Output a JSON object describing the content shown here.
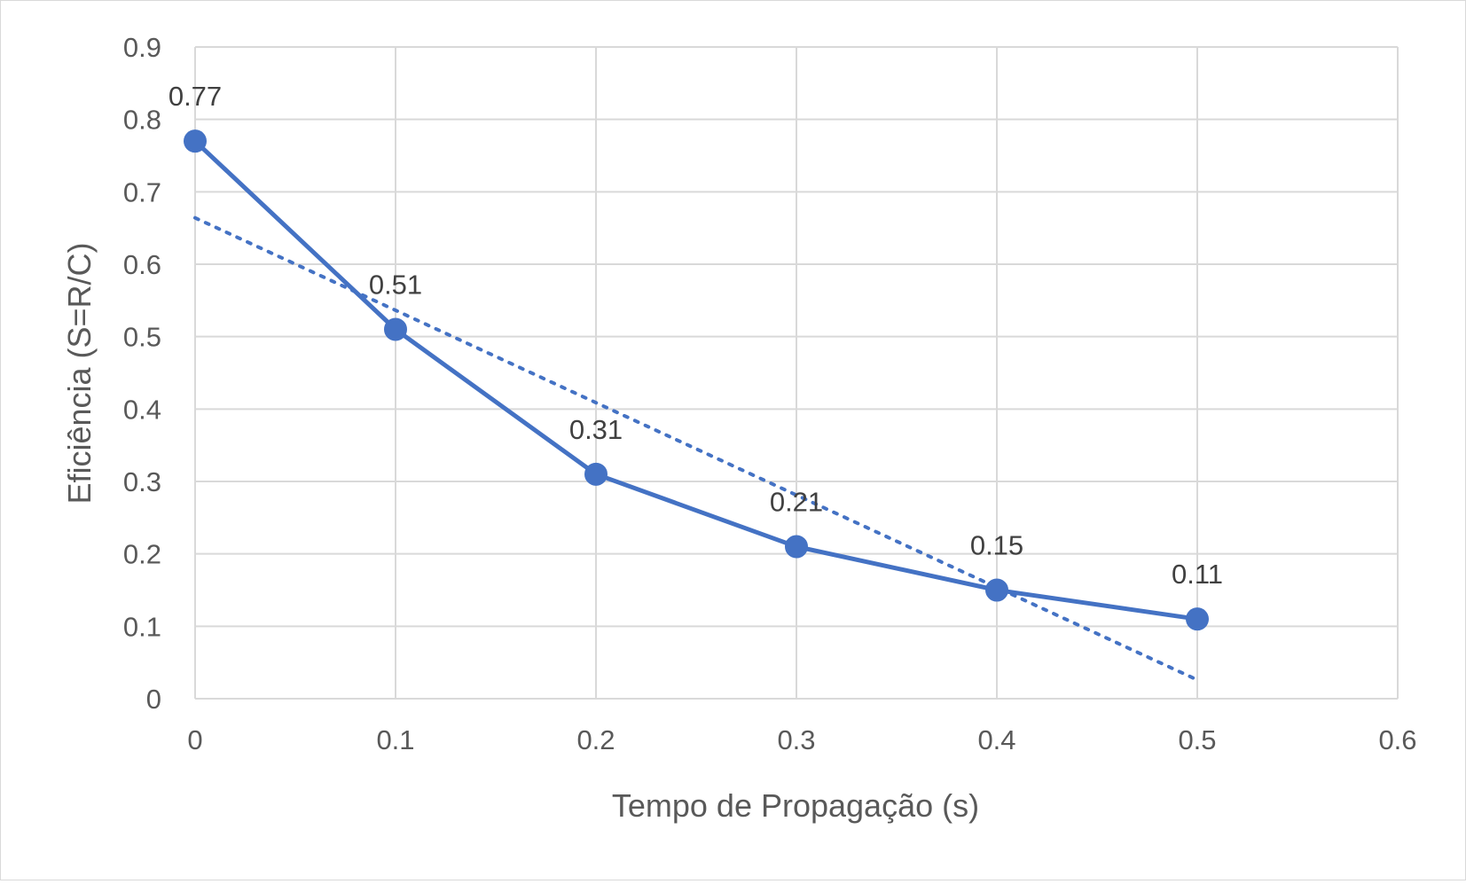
{
  "chart_data": {
    "type": "line",
    "title": "",
    "xlabel": "Tempo de Propagação (s)",
    "ylabel": "Eficiência (S=R/C)",
    "xlim": [
      0,
      0.6
    ],
    "ylim": [
      0,
      0.9
    ],
    "x_ticks": [
      "0",
      "0.1",
      "0.2",
      "0.3",
      "0.4",
      "0.5",
      "0.6"
    ],
    "y_ticks": [
      "0",
      "0.1",
      "0.2",
      "0.3",
      "0.4",
      "0.5",
      "0.6",
      "0.7",
      "0.8",
      "0.9"
    ],
    "grid": true,
    "legend": "none",
    "series": [
      {
        "x": [
          0,
          0.1,
          0.2,
          0.3,
          0.4,
          0.5
        ],
        "values": [
          0.77,
          0.51,
          0.31,
          0.21,
          0.15,
          0.11
        ],
        "data_labels": [
          "0.77",
          "0.51",
          "0.31",
          "0.21",
          "0.15",
          "0.11"
        ],
        "color": "#4472c4",
        "markers": true
      }
    ],
    "trendline": {
      "type": "linear",
      "style": "dotted",
      "color": "#4472c4",
      "x": [
        0,
        0.5
      ],
      "values": [
        0.664,
        0.026
      ]
    }
  }
}
